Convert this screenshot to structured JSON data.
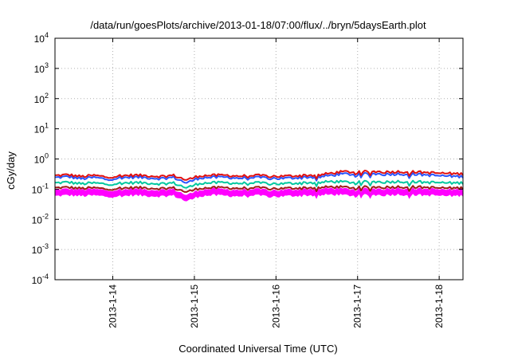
{
  "chart_data": {
    "type": "line",
    "title": "/data/run/goesPlots/archive/2013-01-18/07:00/flux/../bryn/5daysEarth.plot",
    "xlabel": "Coordinated Universal Time (UTC)",
    "ylabel": "cGy/day",
    "yscale": "log",
    "ylim_exp": [
      -4,
      4
    ],
    "y_ticks": [
      {
        "base": "10",
        "exp": "-4"
      },
      {
        "base": "10",
        "exp": "-3"
      },
      {
        "base": "10",
        "exp": "-2"
      },
      {
        "base": "10",
        "exp": "-1"
      },
      {
        "base": "10",
        "exp": "0"
      },
      {
        "base": "10",
        "exp": "1"
      },
      {
        "base": "10",
        "exp": "2"
      },
      {
        "base": "10",
        "exp": "3"
      },
      {
        "base": "10",
        "exp": "4"
      }
    ],
    "xlim": [
      "2013-01-13T07:00",
      "2013-01-18T07:00"
    ],
    "x_ticks": [
      "2013-1-14",
      "2013-1-15",
      "2013-1-16",
      "2013-1-17",
      "2013-1-18"
    ],
    "grid": true,
    "legend": "none",
    "series": [
      {
        "color": "#ff00ff",
        "fill": true,
        "values": [
          0.075,
          0.08,
          0.075,
          0.078,
          0.072,
          0.075,
          0.08,
          0.076,
          0.074,
          0.078,
          0.05,
          0.075,
          0.08,
          0.077,
          0.074,
          0.078,
          0.075,
          0.072,
          0.076,
          0.08,
          0.078,
          0.085,
          0.08,
          0.078,
          0.082,
          0.08,
          0.085,
          0.082,
          0.08,
          0.078,
          0.075,
          0.078
        ]
      },
      {
        "color": "#a01818",
        "values": [
          0.11,
          0.115,
          0.105,
          0.11,
          0.1,
          0.108,
          0.112,
          0.11,
          0.105,
          0.11,
          0.08,
          0.108,
          0.11,
          0.112,
          0.106,
          0.11,
          0.108,
          0.104,
          0.108,
          0.112,
          0.11,
          0.12,
          0.115,
          0.112,
          0.118,
          0.115,
          0.12,
          0.118,
          0.115,
          0.11,
          0.108,
          0.11
        ]
      },
      {
        "color": "#00c8a0",
        "values": [
          0.16,
          0.17,
          0.15,
          0.16,
          0.145,
          0.158,
          0.165,
          0.16,
          0.152,
          0.16,
          0.11,
          0.158,
          0.162,
          0.165,
          0.155,
          0.16,
          0.158,
          0.15,
          0.156,
          0.165,
          0.162,
          0.18,
          0.172,
          0.168,
          0.178,
          0.172,
          0.18,
          0.176,
          0.17,
          0.165,
          0.16,
          0.162
        ]
      },
      {
        "color": "#2a55ff",
        "values": [
          0.24,
          0.26,
          0.22,
          0.245,
          0.21,
          0.24,
          0.25,
          0.24,
          0.225,
          0.245,
          0.16,
          0.24,
          0.245,
          0.25,
          0.23,
          0.24,
          0.238,
          0.225,
          0.235,
          0.25,
          0.248,
          0.29,
          0.32,
          0.3,
          0.33,
          0.31,
          0.32,
          0.315,
          0.3,
          0.28,
          0.27,
          0.26
        ]
      },
      {
        "color": "#e01010",
        "values": [
          0.28,
          0.3,
          0.26,
          0.285,
          0.25,
          0.28,
          0.29,
          0.28,
          0.265,
          0.285,
          0.2,
          0.28,
          0.285,
          0.29,
          0.27,
          0.28,
          0.278,
          0.265,
          0.275,
          0.29,
          0.288,
          0.34,
          0.38,
          0.36,
          0.39,
          0.37,
          0.38,
          0.375,
          0.36,
          0.34,
          0.33,
          0.32
        ]
      }
    ]
  }
}
